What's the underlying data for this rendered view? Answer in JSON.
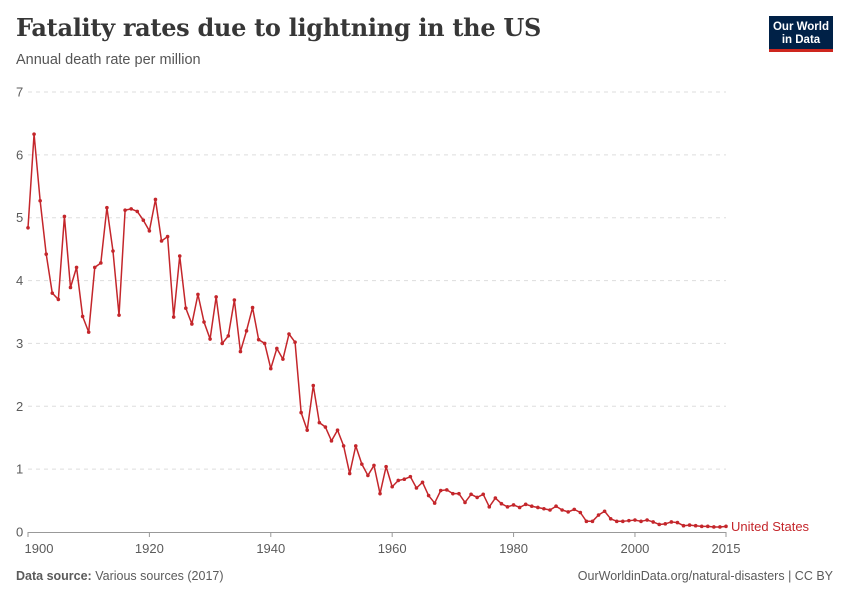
{
  "header": {
    "title": "Fatality rates due to lightning in the US",
    "subtitle": "Annual death rate per million"
  },
  "logo": {
    "line1": "Our World",
    "line2": "in Data",
    "bg_color": "#002147",
    "accent_color": "#ce261e"
  },
  "footer": {
    "source_label": "Data source:",
    "source_value": "Various sources (2017)",
    "link": "OurWorldinData.org/natural-disasters | CC BY"
  },
  "chart_data": {
    "type": "line",
    "xlim": [
      1900,
      2015
    ],
    "ylim": [
      0,
      7
    ],
    "x_ticks": [
      1900,
      1920,
      1940,
      1960,
      1980,
      2000,
      2015
    ],
    "y_ticks": [
      0,
      1,
      2,
      3,
      4,
      5,
      6,
      7
    ],
    "grid": true,
    "series": [
      {
        "name": "United States",
        "color": "#c4262b",
        "x": [
          1900,
          1901,
          1902,
          1903,
          1904,
          1905,
          1906,
          1907,
          1908,
          1909,
          1910,
          1911,
          1912,
          1913,
          1914,
          1915,
          1916,
          1917,
          1918,
          1919,
          1920,
          1921,
          1922,
          1923,
          1924,
          1925,
          1926,
          1927,
          1928,
          1929,
          1930,
          1931,
          1932,
          1933,
          1934,
          1935,
          1936,
          1937,
          1938,
          1939,
          1940,
          1941,
          1942,
          1943,
          1944,
          1945,
          1946,
          1947,
          1948,
          1949,
          1950,
          1951,
          1952,
          1953,
          1954,
          1955,
          1956,
          1957,
          1958,
          1959,
          1960,
          1961,
          1962,
          1963,
          1964,
          1965,
          1966,
          1967,
          1968,
          1969,
          1970,
          1971,
          1972,
          1973,
          1974,
          1975,
          1976,
          1977,
          1978,
          1979,
          1980,
          1981,
          1982,
          1983,
          1984,
          1985,
          1986,
          1987,
          1988,
          1989,
          1990,
          1991,
          1992,
          1993,
          1994,
          1995,
          1996,
          1997,
          1998,
          1999,
          2000,
          2001,
          2002,
          2003,
          2004,
          2005,
          2006,
          2007,
          2008,
          2009,
          2010,
          2011,
          2012,
          2013,
          2014,
          2015
        ],
        "values": [
          4.84,
          6.33,
          5.27,
          4.42,
          3.8,
          3.7,
          5.02,
          3.89,
          4.21,
          3.43,
          3.18,
          4.21,
          4.28,
          5.16,
          4.47,
          3.45,
          5.12,
          5.14,
          5.1,
          4.96,
          4.79,
          5.29,
          4.63,
          4.7,
          3.42,
          4.39,
          3.56,
          3.31,
          3.78,
          3.34,
          3.07,
          3.74,
          3.0,
          3.12,
          3.69,
          2.87,
          3.2,
          3.57,
          3.06,
          3.0,
          2.6,
          2.92,
          2.75,
          3.15,
          3.02,
          1.9,
          1.62,
          2.33,
          1.74,
          1.67,
          1.45,
          1.62,
          1.37,
          0.93,
          1.37,
          1.08,
          0.9,
          1.06,
          0.61,
          1.04,
          0.72,
          0.82,
          0.84,
          0.88,
          0.7,
          0.79,
          0.58,
          0.46,
          0.66,
          0.67,
          0.61,
          0.61,
          0.47,
          0.6,
          0.55,
          0.6,
          0.4,
          0.54,
          0.45,
          0.4,
          0.43,
          0.39,
          0.44,
          0.41,
          0.39,
          0.37,
          0.35,
          0.41,
          0.35,
          0.32,
          0.36,
          0.31,
          0.17,
          0.17,
          0.27,
          0.33,
          0.21,
          0.17,
          0.17,
          0.18,
          0.19,
          0.17,
          0.19,
          0.16,
          0.12,
          0.13,
          0.16,
          0.15,
          0.1,
          0.11,
          0.1,
          0.09,
          0.09,
          0.08,
          0.08,
          0.09
        ]
      }
    ]
  }
}
